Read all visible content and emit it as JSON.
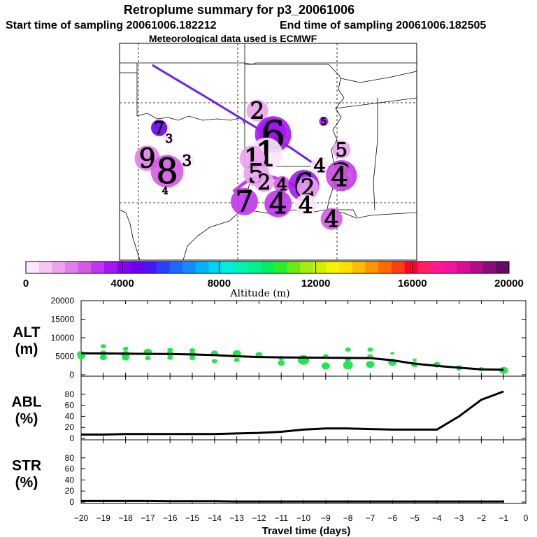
{
  "header": {
    "title": "Retroplume summary for p3_20061006",
    "start_label": "Start time of sampling 20061006.182212",
    "end_label": "End time of sampling 20061006.182505",
    "met_label": "Meteorological data used is ECMWF"
  },
  "colorbar": {
    "title": "Altitude (m)",
    "ticks": [
      "0",
      "4000",
      "8000",
      "12000",
      "16000",
      "20000"
    ],
    "colors": [
      "#fbe6fb",
      "#f4c6f4",
      "#eda2f0",
      "#e27ee8",
      "#d45ae6",
      "#c035ee",
      "#a416f4",
      "#8a00f6",
      "#6a00ee",
      "#4a16f8",
      "#2a40fc",
      "#1a68fc",
      "#108cfc",
      "#00b4f8",
      "#00d4f2",
      "#00eedc",
      "#00f4b4",
      "#00f48c",
      "#00f05e",
      "#28ee2e",
      "#66ee14",
      "#a4ee0c",
      "#d4f000",
      "#f6f200",
      "#ffe000",
      "#ffbc00",
      "#ff9200",
      "#ff6a00",
      "#ff3c12",
      "#ff0030",
      "#ff2068",
      "#ff1890",
      "#f014a0",
      "#d80c98",
      "#b40c88",
      "#8a0c78",
      "#640c64"
    ]
  },
  "map": {
    "points": [
      {
        "label": "2",
        "day": 2,
        "lon": -94.05,
        "lat": 34.9,
        "size": 12,
        "alt": 1500
      },
      {
        "label": "5",
        "day": 5,
        "lon": -90.7,
        "lat": 34.4,
        "size": 5,
        "alt": 3500
      },
      {
        "label": "7",
        "day": 7,
        "lon": -99.0,
        "lat": 34.1,
        "size": 9,
        "alt": 4700
      },
      {
        "label": "3",
        "day": 3,
        "lon": -98.5,
        "lat": 33.6,
        "size": 6,
        "alt": 500
      },
      {
        "label": "5",
        "day": 5,
        "lon": -93.3,
        "lat": 33.9,
        "size": 15,
        "alt": 3900
      },
      {
        "label": "6",
        "day": 6,
        "lon": -93.25,
        "lat": 33.8,
        "size": 20,
        "alt": 3600
      },
      {
        "label": "5",
        "day": 5,
        "lon": -89.8,
        "lat": 33.1,
        "size": 10,
        "alt": 1500
      },
      {
        "label": "1",
        "day": 1,
        "lon": -93.6,
        "lat": 32.9,
        "size": 18,
        "alt": 400
      },
      {
        "label": "1",
        "day": 1,
        "lon": -94.3,
        "lat": 32.7,
        "size": 14,
        "alt": 1300
      },
      {
        "label": "9",
        "day": 9,
        "lon": -99.6,
        "lat": 32.7,
        "size": 14,
        "alt": 2000
      },
      {
        "label": "3",
        "day": 3,
        "lon": -97.6,
        "lat": 32.6,
        "size": 8,
        "alt": 500
      },
      {
        "label": "4",
        "day": 4,
        "lon": -90.9,
        "lat": 32.35,
        "size": 10,
        "alt": 200
      },
      {
        "label": "8",
        "day": 8,
        "lon": -98.6,
        "lat": 32.1,
        "size": 18,
        "alt": 2200
      },
      {
        "label": "5",
        "day": 5,
        "lon": -94.1,
        "lat": 32.0,
        "size": 14,
        "alt": 1500
      },
      {
        "label": "3",
        "day": 3,
        "lon": -89.8,
        "lat": 31.9,
        "size": 17,
        "alt": 3100
      },
      {
        "label": "4",
        "day": 4,
        "lon": -89.9,
        "lat": 31.85,
        "size": 14,
        "alt": 2500
      },
      {
        "label": "2",
        "day": 2,
        "lon": -93.7,
        "lat": 31.6,
        "size": 11,
        "alt": 1500
      },
      {
        "label": "4",
        "day": 4,
        "lon": -92.8,
        "lat": 31.5,
        "size": 9,
        "alt": 2500
      },
      {
        "label": "6",
        "day": 6,
        "lon": -91.7,
        "lat": 31.45,
        "size": 17,
        "alt": 3500
      },
      {
        "label": "2",
        "day": 2,
        "lon": -91.5,
        "lat": 31.35,
        "size": 12,
        "alt": 1500
      },
      {
        "label": "4",
        "day": 4,
        "lon": -98.7,
        "lat": 31.2,
        "size": 3,
        "alt": 300
      },
      {
        "label": "7",
        "day": 7,
        "lon": -94.7,
        "lat": 30.7,
        "size": 15,
        "alt": 2800
      },
      {
        "label": "4",
        "day": 4,
        "lon": -93.0,
        "lat": 30.6,
        "size": 15,
        "alt": 3200
      },
      {
        "label": "4",
        "day": 4,
        "lon": -91.6,
        "lat": 30.55,
        "size": 12,
        "alt": 400
      },
      {
        "label": "4",
        "day": 4,
        "lon": -90.3,
        "lat": 29.9,
        "size": 12,
        "alt": 2700
      }
    ],
    "track_main": [
      {
        "lon": -99.35,
        "lat": 37.0
      },
      {
        "lon": -96.6,
        "lat": 35.5
      },
      {
        "lon": -93.9,
        "lat": 34.0
      },
      {
        "lon": -92.4,
        "lat": 33.2
      },
      {
        "lon": -91.2,
        "lat": 32.45
      },
      {
        "lon": -90.2,
        "lat": 31.9
      },
      {
        "lon": -90.4,
        "lat": 31.8
      }
    ],
    "track_secondary": [
      {
        "lon": -95.2,
        "lat": 31.2
      },
      {
        "lon": -94.5,
        "lat": 31.7
      },
      {
        "lon": -93.6,
        "lat": 31.9
      },
      {
        "lon": -92.8,
        "lat": 31.7
      },
      {
        "lon": -92.1,
        "lat": 31.4
      },
      {
        "lon": -91.5,
        "lat": 31.3
      }
    ]
  },
  "chart_data": [
    {
      "type": "scatter",
      "title": "ALT (m)",
      "label_line1": "ALT",
      "label_line2": "(m)",
      "ylim": [
        0,
        20000
      ],
      "yticks": [
        "0",
        "5000",
        "10000",
        "15000",
        "20000"
      ],
      "xlim": [
        -20,
        0
      ],
      "points": [
        {
          "x": -20,
          "y": 5500,
          "size": 5
        },
        {
          "x": -20,
          "y": 4900,
          "size": 4
        },
        {
          "x": -19,
          "y": 7700,
          "size": 3
        },
        {
          "x": -19,
          "y": 5800,
          "size": 4
        },
        {
          "x": -19,
          "y": 4700,
          "size": 4
        },
        {
          "x": -18,
          "y": 7000,
          "size": 3
        },
        {
          "x": -18,
          "y": 5500,
          "size": 5
        },
        {
          "x": -18,
          "y": 4600,
          "size": 4
        },
        {
          "x": -17,
          "y": 6100,
          "size": 5
        },
        {
          "x": -17,
          "y": 4500,
          "size": 3
        },
        {
          "x": -16,
          "y": 6700,
          "size": 3
        },
        {
          "x": -16,
          "y": 5700,
          "size": 4
        },
        {
          "x": -16,
          "y": 4600,
          "size": 3
        },
        {
          "x": -15,
          "y": 6600,
          "size": 3
        },
        {
          "x": -15,
          "y": 5500,
          "size": 4
        },
        {
          "x": -15,
          "y": 4500,
          "size": 3
        },
        {
          "x": -14,
          "y": 5800,
          "size": 4
        },
        {
          "x": -14,
          "y": 3700,
          "size": 3
        },
        {
          "x": -13,
          "y": 5700,
          "size": 5
        },
        {
          "x": -13,
          "y": 4000,
          "size": 3
        },
        {
          "x": -12,
          "y": 5400,
          "size": 4
        },
        {
          "x": -11,
          "y": 4500,
          "size": 3
        },
        {
          "x": -11,
          "y": 3200,
          "size": 4
        },
        {
          "x": -10,
          "y": 4000,
          "size": 7
        },
        {
          "x": -9,
          "y": 5000,
          "size": 3
        },
        {
          "x": -9,
          "y": 2400,
          "size": 5
        },
        {
          "x": -8,
          "y": 6800,
          "size": 3
        },
        {
          "x": -8,
          "y": 4000,
          "size": 3
        },
        {
          "x": -8,
          "y": 2600,
          "size": 6
        },
        {
          "x": -7,
          "y": 6800,
          "size": 3
        },
        {
          "x": -7,
          "y": 5000,
          "size": 3
        },
        {
          "x": -7,
          "y": 2800,
          "size": 5
        },
        {
          "x": -6,
          "y": 5800,
          "size": 2
        },
        {
          "x": -6,
          "y": 3400,
          "size": 5
        },
        {
          "x": -5,
          "y": 4000,
          "size": 2
        },
        {
          "x": -5,
          "y": 2800,
          "size": 4
        },
        {
          "x": -4,
          "y": 2700,
          "size": 4
        },
        {
          "x": -3,
          "y": 2000,
          "size": 3
        },
        {
          "x": -3,
          "y": 1700,
          "size": 3
        },
        {
          "x": -2,
          "y": 1500,
          "size": 3
        },
        {
          "x": -1,
          "y": 1200,
          "size": 5
        }
      ],
      "line": {
        "x": [
          -20,
          -19,
          -18,
          -17,
          -16,
          -15,
          -14,
          -13,
          -12,
          -11,
          -10,
          -9,
          -8,
          -7,
          -6,
          -5,
          -4,
          -3,
          -2,
          -1
        ],
        "y": [
          5800,
          5750,
          5700,
          5650,
          5600,
          5500,
          5300,
          5000,
          4800,
          4700,
          4650,
          4600,
          4550,
          4500,
          3900,
          3000,
          2400,
          1900,
          1450,
          1350
        ]
      }
    },
    {
      "type": "line",
      "title": "ABL (%)",
      "label_line1": "ABL",
      "label_line2": "(%)",
      "ylim": [
        0,
        100
      ],
      "yticks": [
        "0",
        "20",
        "40",
        "60",
        "80"
      ],
      "xlim": [
        -20,
        0
      ],
      "x": [
        -20,
        -19,
        -18,
        -17,
        -16,
        -15,
        -14,
        -13,
        -12,
        -11,
        -10,
        -9,
        -8,
        -7,
        -6,
        -5,
        -4,
        -3,
        -2,
        -1
      ],
      "values": [
        7,
        7,
        8,
        8,
        8,
        8,
        8,
        9,
        10,
        12,
        16,
        18,
        18,
        17,
        16,
        16,
        16,
        40,
        70,
        85
      ]
    },
    {
      "type": "line",
      "title": "STR (%)",
      "label_line1": "STR",
      "label_line2": "(%)",
      "ylim": [
        0,
        100
      ],
      "yticks": [
        "0",
        "20",
        "40",
        "60",
        "80"
      ],
      "xlim": [
        -20,
        0
      ],
      "x": [
        -20,
        -19,
        -18,
        -17,
        -16,
        -15,
        -14,
        -13,
        -12,
        -11,
        -10,
        -9,
        -8,
        -7,
        -6,
        -5,
        -4,
        -3,
        -2,
        -1
      ],
      "values": [
        2,
        2,
        2,
        2,
        1.5,
        1.5,
        1.5,
        1,
        1,
        1,
        1,
        1,
        1,
        1,
        1,
        1,
        1,
        1,
        1,
        1
      ]
    }
  ],
  "x_axis": {
    "label": "Travel time (days)",
    "ticks": [
      "−20",
      "−19",
      "−18",
      "−17",
      "−16",
      "−15",
      "−14",
      "−13",
      "−12",
      "−11",
      "−10",
      "−9",
      "−8",
      "−7",
      "−6",
      "−5",
      "−4",
      "−3",
      "−2",
      "−1",
      "0"
    ]
  }
}
